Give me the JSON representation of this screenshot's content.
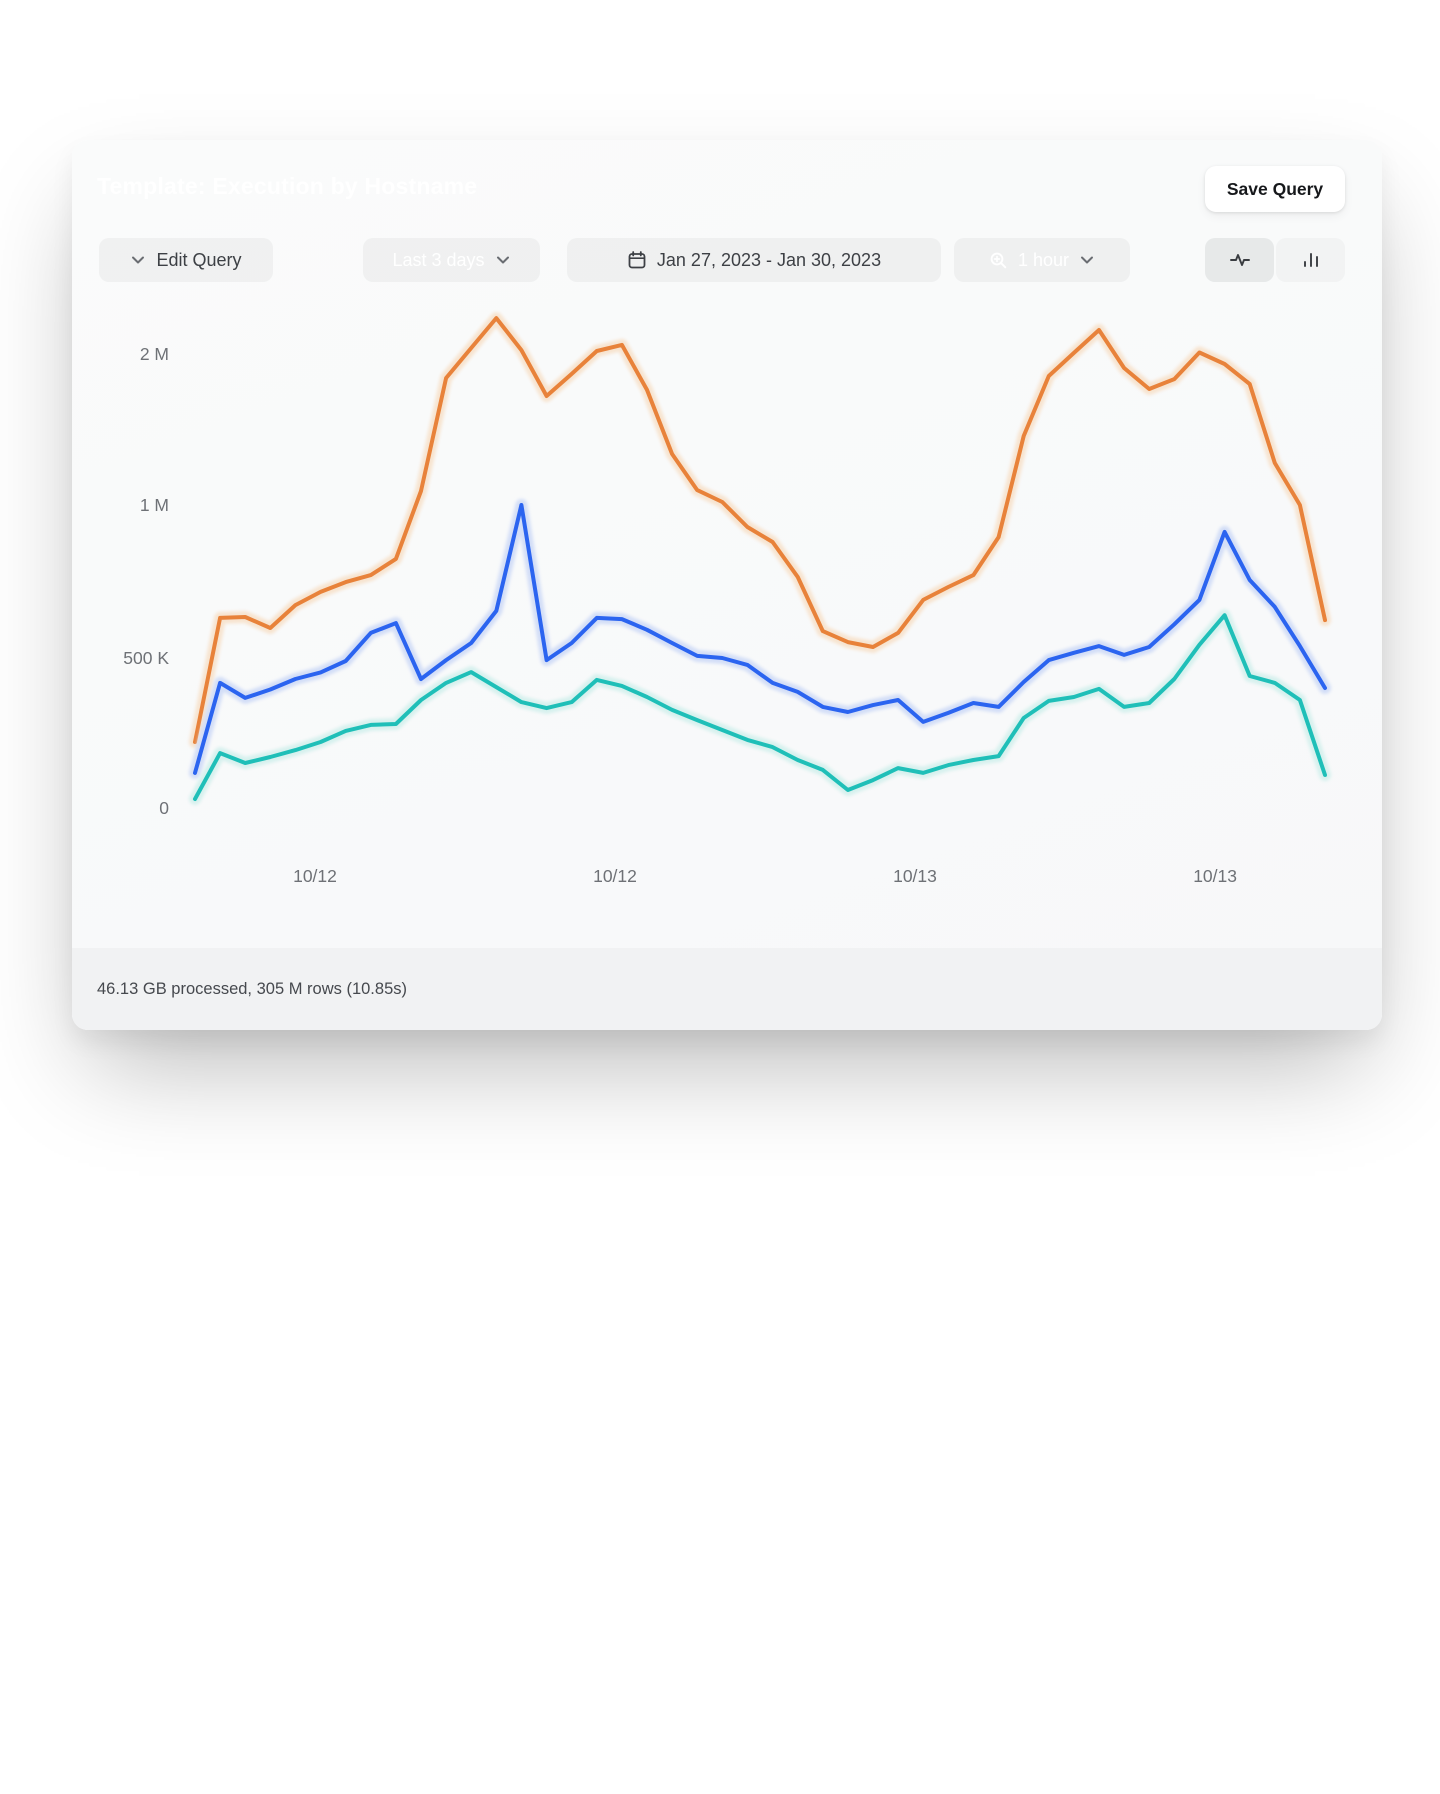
{
  "header": {
    "title": "Template: Execution by Hostname",
    "save_button": "Save Query"
  },
  "toolbar": {
    "edit_query": "Edit Query",
    "time_range": "Last 3 days",
    "date_range": "Jan 27, 2023 - Jan 30, 2023",
    "interval": "1 hour",
    "view_icons": [
      "activity-line-view",
      "bar-chart-view"
    ],
    "selected_view": "activity-line-view"
  },
  "footer": {
    "status": "46.13 GB processed, 305 M rows (10.85s)"
  },
  "colors": {
    "orange": "#e8823a",
    "orange_halo": "#f7e4d0",
    "blue": "#2b64f0",
    "blue_halo": "#d3def7",
    "teal": "#1fbfb8",
    "teal_halo": "#d7f1ee"
  },
  "chart_data": {
    "type": "line",
    "title": "",
    "xlabel": "",
    "ylabel": "",
    "unit": "thousands",
    "grid": false,
    "legend": "none",
    "y_scale_note": "ticks 0 / 500K / 1M / 2M are equally spaced (non-linear axis)",
    "y_ticks": [
      {
        "label": "0",
        "value": 0
      },
      {
        "label": "500 K",
        "value": 500
      },
      {
        "label": "1 M",
        "value": 1000
      },
      {
        "label": "2 M",
        "value": 2000
      }
    ],
    "x_tick_labels": [
      "10/12",
      "10/12",
      "10/13",
      "10/13"
    ],
    "series": [
      {
        "name": "orange-series",
        "color": "#e8823a",
        "halo": "#f7e4d0",
        "values": [
          220,
          631,
          634,
          598,
          673,
          716,
          748,
          771,
          824,
          1093,
          1841,
          2040,
          2238,
          2026,
          1722,
          1868,
          2020,
          2060,
          1762,
          1338,
          1099,
          1020,
          928,
          879,
          765,
          588,
          552,
          536,
          582,
          690,
          732,
          771,
          895,
          1457,
          1854,
          2007,
          2159,
          1907,
          1768,
          1834,
          2010,
          1934,
          1801,
          1278,
          1000,
          624
        ]
      },
      {
        "name": "blue-series",
        "color": "#2b64f0",
        "halo": "#d3def7",
        "values": [
          117,
          417,
          367,
          395,
          430,
          452,
          490,
          582,
          614,
          430,
          493,
          549,
          654,
          1000,
          493,
          549,
          631,
          627,
          592,
          549,
          507,
          500,
          477,
          417,
          387,
          337,
          320,
          343,
          360,
          287,
          317,
          350,
          337,
          420,
          493,
          517,
          539,
          510,
          536,
          610,
          690,
          912,
          755,
          667,
          539,
          400
        ]
      },
      {
        "name": "teal-series",
        "color": "#1fbfb8",
        "halo": "#d7f1ee",
        "values": [
          30,
          183,
          150,
          170,
          193,
          220,
          257,
          277,
          280,
          360,
          417,
          453,
          403,
          353,
          333,
          353,
          427,
          407,
          370,
          327,
          293,
          260,
          227,
          203,
          160,
          127,
          60,
          93,
          133,
          117,
          143,
          160,
          173,
          300,
          357,
          370,
          397,
          337,
          350,
          430,
          543,
          640,
          440,
          417,
          360,
          110
        ]
      }
    ]
  }
}
